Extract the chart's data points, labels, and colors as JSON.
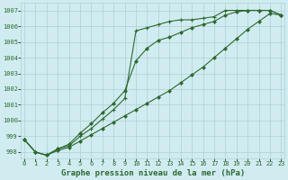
{
  "background_color": "#d0ecf0",
  "grid_color": "#b0cfd5",
  "line_color": "#2d6a2d",
  "marker_color": "#2d6a2d",
  "title": "Graphe pression niveau de la mer (hPa)",
  "xlabel_fontsize": 6.5,
  "xlim": [
    -0.3,
    23.3
  ],
  "ylim": [
    997.6,
    1007.5
  ],
  "yticks": [
    998,
    999,
    1000,
    1001,
    1002,
    1003,
    1004,
    1005,
    1006,
    1007
  ],
  "xticks": [
    0,
    1,
    2,
    3,
    4,
    5,
    6,
    7,
    8,
    9,
    10,
    11,
    12,
    13,
    14,
    15,
    16,
    17,
    18,
    19,
    20,
    21,
    22,
    23
  ],
  "line1_x": [
    0,
    1,
    2,
    3,
    4,
    5,
    6,
    7,
    8,
    9,
    10,
    11,
    12,
    13,
    14,
    15,
    16,
    17,
    18,
    19,
    20,
    21,
    22,
    23
  ],
  "line1_y": [
    998.8,
    998.0,
    997.8,
    998.2,
    998.4,
    999.0,
    999.5,
    1000.1,
    1000.7,
    1001.4,
    1005.7,
    1005.9,
    1006.1,
    1006.3,
    1006.4,
    1006.4,
    1006.5,
    1006.6,
    1007.0,
    1007.0,
    1007.0,
    1007.0,
    1007.0,
    1006.7
  ],
  "line2_x": [
    0,
    1,
    2,
    3,
    4,
    5,
    6,
    7,
    8,
    9,
    10,
    11,
    12,
    13,
    14,
    15,
    16,
    17,
    18,
    19,
    20,
    21,
    22,
    23
  ],
  "line2_y": [
    998.8,
    998.0,
    997.8,
    998.2,
    998.5,
    999.2,
    999.8,
    1000.5,
    1001.1,
    1001.9,
    1003.8,
    1004.6,
    1005.1,
    1005.3,
    1005.6,
    1005.9,
    1006.1,
    1006.3,
    1006.7,
    1006.9,
    1007.0,
    1007.0,
    1007.0,
    1006.7
  ],
  "line3_x": [
    0,
    1,
    2,
    3,
    4,
    5,
    6,
    7,
    8,
    9,
    10,
    11,
    12,
    13,
    14,
    15,
    16,
    17,
    18,
    19,
    20,
    21,
    22,
    23
  ],
  "line3_y": [
    998.8,
    998.0,
    997.8,
    998.1,
    998.3,
    998.7,
    999.1,
    999.5,
    999.9,
    1000.3,
    1000.7,
    1001.1,
    1001.5,
    1001.9,
    1002.4,
    1002.9,
    1003.4,
    1004.0,
    1004.6,
    1005.2,
    1005.8,
    1006.3,
    1006.8,
    1006.7
  ]
}
